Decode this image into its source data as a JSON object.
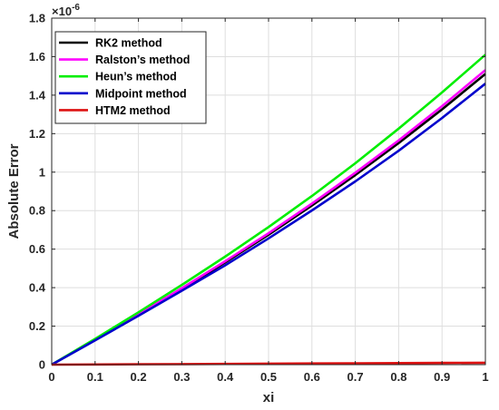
{
  "chart_data": {
    "type": "line",
    "xlabel": "xi",
    "ylabel": "Absolute Error",
    "y_exponent_base": "×10",
    "y_exponent_power": "-6",
    "xlim": [
      0,
      1
    ],
    "ylim": [
      0,
      1.8
    ],
    "xticks": [
      "0",
      "0.1",
      "0.2",
      "0.3",
      "0.4",
      "0.5",
      "0.6",
      "0.7",
      "0.8",
      "0.9",
      "1"
    ],
    "yticks": [
      "0",
      "0.2",
      "0.4",
      "0.6",
      "0.8",
      "1",
      "1.2",
      "1.4",
      "1.6",
      "1.8"
    ],
    "grid": true,
    "legend_position": "top-left",
    "x": [
      0,
      0.1,
      0.2,
      0.3,
      0.4,
      0.5,
      0.6,
      0.7,
      0.8,
      0.9,
      1.0
    ],
    "series": [
      {
        "name": "RK2 method",
        "color": "#000000",
        "values": [
          0,
          0.128,
          0.258,
          0.392,
          0.531,
          0.675,
          0.827,
          0.985,
          1.151,
          1.326,
          1.51
        ]
      },
      {
        "name": "Ralston’s method",
        "color": "#ff00ff",
        "values": [
          0,
          0.129,
          0.261,
          0.397,
          0.537,
          0.683,
          0.837,
          0.997,
          1.165,
          1.343,
          1.53
        ]
      },
      {
        "name": "Heun’s method",
        "color": "#00ee00",
        "values": [
          0,
          0.134,
          0.272,
          0.414,
          0.561,
          0.715,
          0.876,
          1.046,
          1.226,
          1.414,
          1.61
        ]
      },
      {
        "name": "Midpoint method",
        "color": "#0000cc",
        "values": [
          0,
          0.126,
          0.254,
          0.384,
          0.516,
          0.656,
          0.801,
          0.952,
          1.111,
          1.281,
          1.46
        ]
      },
      {
        "name": "HTM2 method",
        "color": "#dd1111",
        "values": [
          0,
          0.001,
          0.002,
          0.003,
          0.004,
          0.005,
          0.006,
          0.007,
          0.008,
          0.009,
          0.01
        ]
      }
    ]
  }
}
